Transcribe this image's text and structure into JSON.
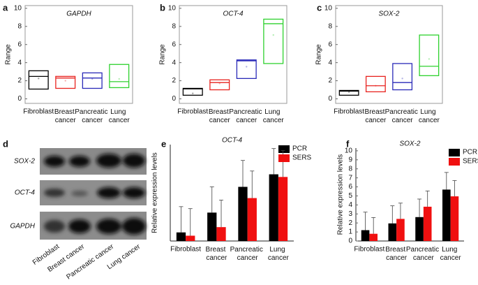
{
  "chart_data": [
    {
      "type": "box",
      "panel_label": "a",
      "title": "GAPDH",
      "ylabel": "Range",
      "categories": [
        "Fibroblast",
        "Breast cancer",
        "Pancreatic cancer",
        "Lung cancer"
      ],
      "colors": [
        "#000000",
        "#e8231f",
        "#2a2ab8",
        "#2ed12e"
      ],
      "low": [
        1.08,
        1.16,
        1.16,
        1.24
      ],
      "high": [
        3.1,
        2.48,
        2.87,
        3.8
      ],
      "median": [
        2.48,
        2.3,
        2.3,
        1.9
      ],
      "mean": [
        2.25,
        2.0,
        2.2,
        2.2
      ],
      "ylim": [
        -0.5,
        10.3
      ],
      "yticks": [
        0,
        2,
        4,
        6,
        8,
        10
      ]
    },
    {
      "type": "box",
      "panel_label": "b",
      "title": "OCT-4",
      "ylabel": "Range",
      "categories": [
        "Fibroblast",
        "Breast cancer",
        "Pancreatic cancer",
        "Lung cancer"
      ],
      "colors": [
        "#000000",
        "#e8231f",
        "#2a2ab8",
        "#2ed12e"
      ],
      "low": [
        0.4,
        1.0,
        2.25,
        3.9
      ],
      "high": [
        1.16,
        2.1,
        4.3,
        8.8
      ],
      "median": [
        1.1,
        1.8,
        4.2,
        8.3
      ],
      "mean": [
        0.6,
        1.7,
        3.55,
        7.05
      ],
      "ylim": [
        -0.5,
        10.3
      ],
      "yticks": [
        0,
        2,
        4,
        6,
        8,
        10
      ]
    },
    {
      "type": "box",
      "panel_label": "c",
      "title": "SOX-2",
      "ylabel": "Range",
      "categories": [
        "Fibroblast",
        "Breast cancer",
        "Pancreatic cancer",
        "Lung cancer"
      ],
      "colors": [
        "#000000",
        "#e8231f",
        "#2a2ab8",
        "#2ed12e"
      ],
      "low": [
        0.4,
        0.78,
        1.0,
        2.56
      ],
      "high": [
        0.93,
        2.48,
        3.9,
        7.05
      ],
      "median": [
        0.85,
        1.45,
        1.8,
        3.6
      ],
      "mean": [
        0.75,
        1.45,
        2.25,
        4.4
      ],
      "ylim": [
        -0.5,
        10.3
      ],
      "yticks": [
        0,
        2,
        4,
        6,
        8,
        10
      ]
    },
    {
      "type": "bar",
      "panel_label": "e",
      "title": "OCT-4",
      "ylabel": "Relative expression levels",
      "categories": [
        "Fibroblast",
        "Breast cancer",
        "Pancreatic cancer",
        "Lung cancer"
      ],
      "series": [
        {
          "name": "PCR",
          "color": "#000000",
          "values": [
            0.65,
            2.15,
            4.1,
            5.05
          ],
          "errors": [
            1.95,
            1.95,
            2.0,
            1.95
          ]
        },
        {
          "name": "SERS",
          "color": "#f01010",
          "values": [
            0.4,
            1.05,
            3.25,
            4.85
          ],
          "errors": [
            2.05,
            2.05,
            2.05,
            2.0
          ]
        }
      ],
      "ylim": [
        0,
        7.3
      ],
      "legend": "upper right"
    },
    {
      "type": "bar",
      "panel_label": "f",
      "title": "SOX-2",
      "ylabel": "Relative expression levels",
      "categories": [
        "Fibroblast",
        "Breast cancer",
        "Pancreatic cancer",
        "Lung cancer"
      ],
      "series": [
        {
          "name": "PCR",
          "color": "#000000",
          "values": [
            1.2,
            1.95,
            2.65,
            5.7
          ],
          "errors": [
            2.0,
            1.95,
            2.0,
            1.9
          ]
        },
        {
          "name": "SERS",
          "color": "#f01010",
          "values": [
            0.8,
            2.45,
            3.8,
            4.95
          ],
          "errors": [
            1.8,
            1.75,
            1.75,
            1.75
          ]
        }
      ],
      "ylim": [
        0,
        10.3
      ],
      "yticks": [
        0,
        1,
        2,
        3,
        4,
        5,
        6,
        7,
        8,
        9,
        10
      ],
      "legend": "upper right"
    }
  ],
  "blot": {
    "panel_label": "d",
    "rows": [
      "SOX-2",
      "OCT-4",
      "GAPDH"
    ],
    "lanes": [
      "Fibroblast",
      "Breast cancer",
      "Pancreatic cancer",
      "Lung cancer"
    ]
  }
}
